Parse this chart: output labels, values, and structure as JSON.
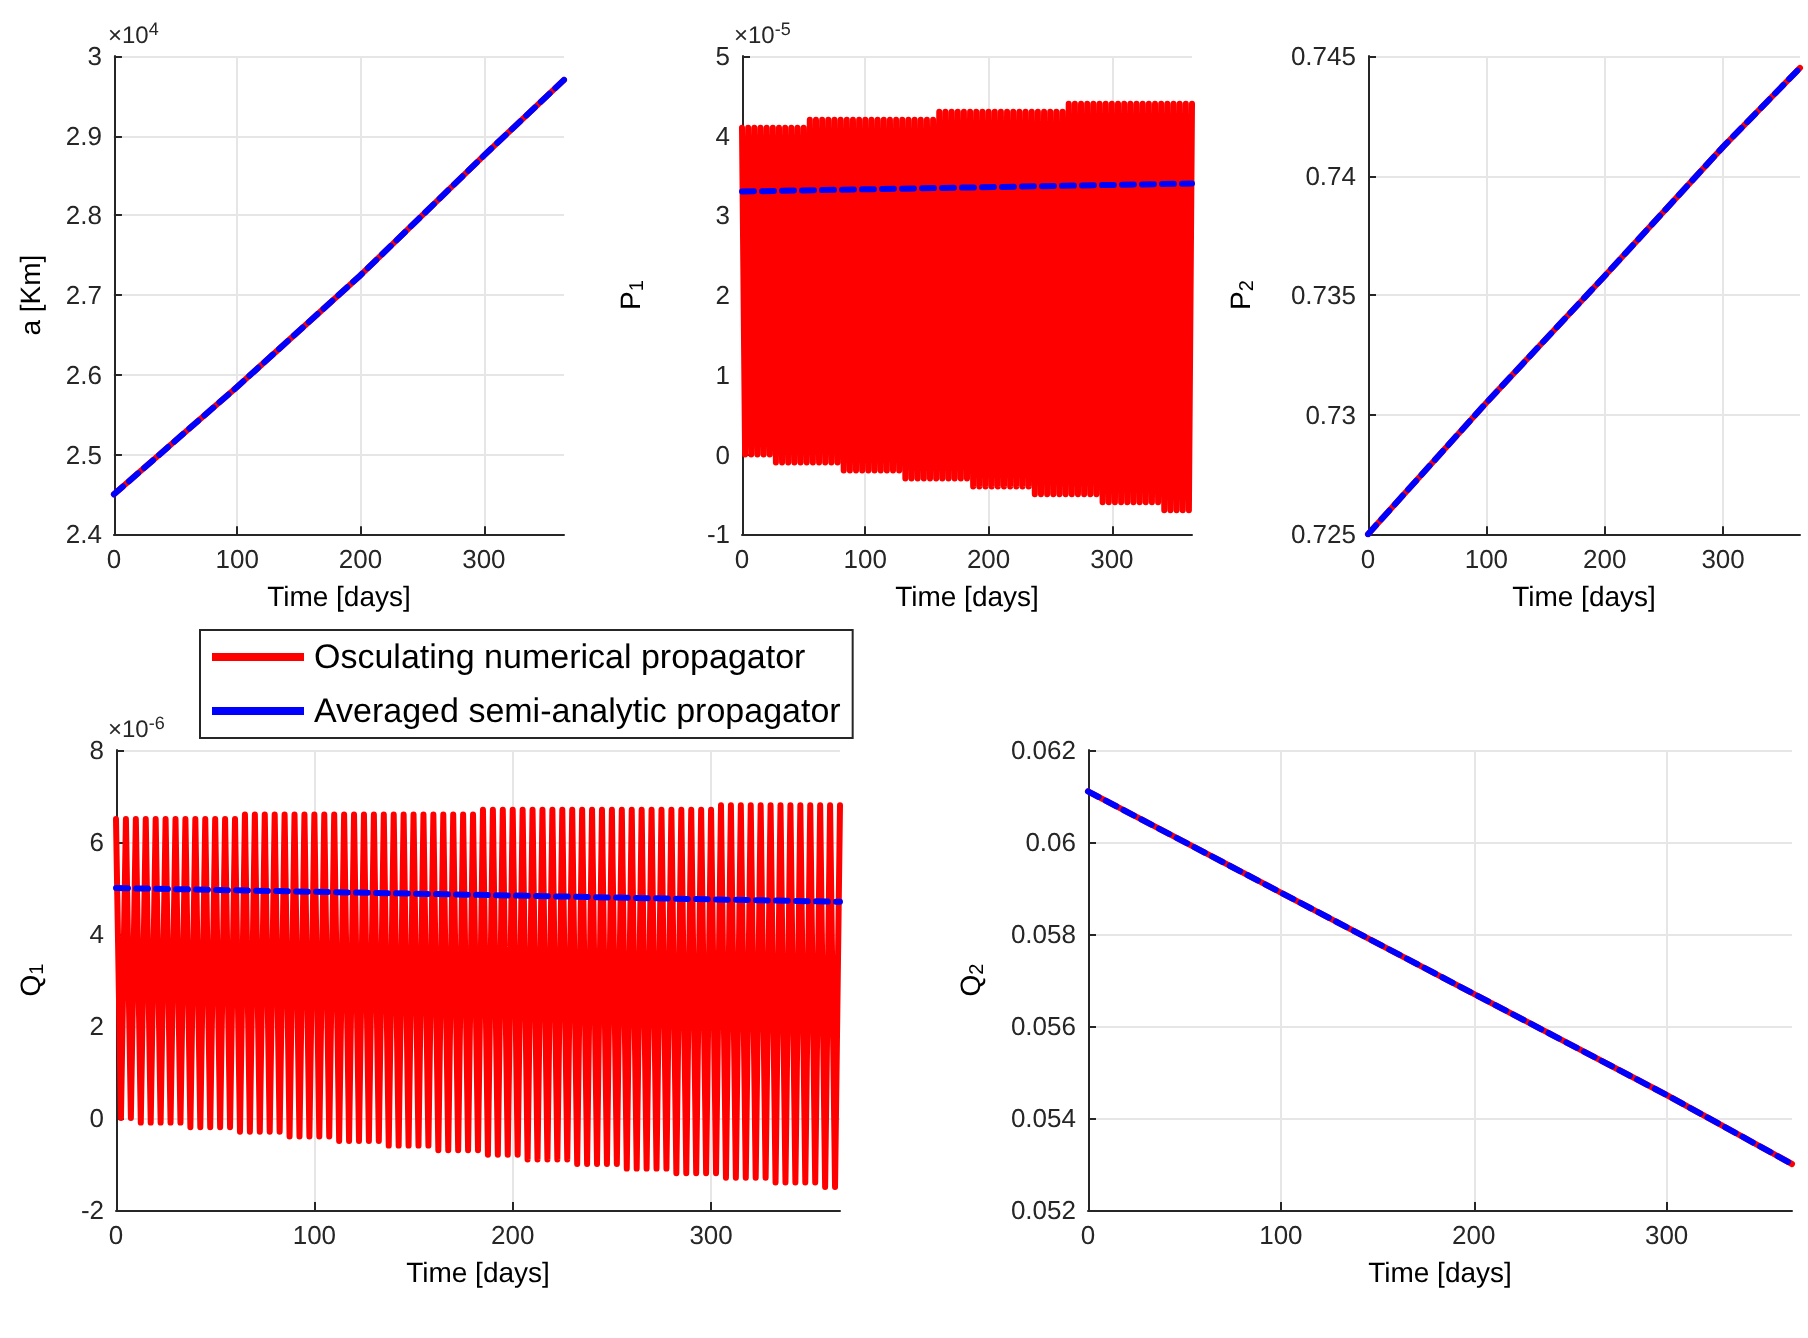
{
  "chart_data": [
    {
      "type": "line",
      "xlabel": "Time [days]",
      "ylabel": "a [Km]",
      "annotations": [
        "×10$^{4}$"
      ],
      "xlim": [
        0,
        365
      ],
      "xticks": [
        0,
        100,
        200,
        300
      ],
      "ylim": [
        2.4,
        3
      ],
      "yticks": [
        2.4,
        2.5,
        2.6,
        2.7,
        2.8,
        2.9,
        3
      ],
      "grid": true,
      "marker": "none",
      "series": [
        {
          "color": "#ff0000",
          "line_style": "solid",
          "x": [
            0,
            100,
            200,
            300,
            365
          ],
          "values": [
            2.45,
            2.585,
            2.725,
            2.875,
            2.97
          ]
        },
        {
          "color": "#0000ff",
          "line_style": "dashed",
          "x": [
            0,
            100,
            200,
            300,
            365
          ],
          "values": [
            2.45,
            2.585,
            2.725,
            2.875,
            2.97
          ]
        }
      ]
    },
    {
      "type": "line",
      "xlabel": "Time [days]",
      "ylabel": "P$_{1}$",
      "annotations": [
        "×10$^{-5}$"
      ],
      "xlim": [
        0,
        365
      ],
      "xticks": [
        0,
        100,
        200,
        300
      ],
      "ylim": [
        -1,
        5
      ],
      "yticks": [
        -1,
        0,
        1,
        2,
        3,
        4,
        5
      ],
      "grid": true,
      "marker": "none",
      "series": [
        {
          "color": "#ff0000",
          "line_style": "solid",
          "x": [
            0,
            2.5,
            5,
            7.5,
            10,
            12.5,
            15,
            17.5,
            20,
            22.5,
            25,
            27.5,
            30,
            32.5,
            35,
            37.5,
            40,
            42.5,
            45,
            47.5,
            50,
            52.5,
            55,
            57.5,
            60,
            62.5,
            65,
            67.5,
            70,
            72.5,
            75,
            77.5,
            80,
            82.5,
            85,
            87.5,
            90,
            92.5,
            95,
            97.5,
            100,
            102.5,
            105,
            107.5,
            110,
            112.5,
            115,
            117.5,
            120,
            122.5,
            125,
            127.5,
            130,
            132.5,
            135,
            137.5,
            140,
            142.5,
            145,
            147.5,
            150,
            152.5,
            155,
            157.5,
            160,
            162.5,
            165,
            167.5,
            170,
            172.5,
            175,
            177.5,
            180,
            182.5,
            185,
            187.5,
            190,
            192.5,
            195,
            197.5,
            200,
            202.5,
            205,
            207.5,
            210,
            212.5,
            215,
            217.5,
            220,
            222.5,
            225,
            227.5,
            230,
            232.5,
            235,
            237.5,
            240,
            242.5,
            245,
            247.5,
            250,
            252.5,
            255,
            257.5,
            260,
            262.5,
            265,
            267.5,
            270,
            272.5,
            275,
            277.5,
            280,
            282.5,
            285,
            287.5,
            290,
            292.5,
            295,
            297.5,
            300,
            302.5,
            305,
            307.5,
            310,
            312.5,
            315,
            317.5,
            320,
            322.5,
            325,
            327.5,
            330,
            332.5,
            335,
            337.5,
            340,
            342.5,
            345,
            347.5,
            350,
            352.5,
            355,
            357.5,
            360,
            362.5,
            365
          ],
          "values": [
            4.1,
            0,
            4.1,
            0,
            4.1,
            0,
            4.1,
            0,
            4.1,
            0,
            4.1,
            -0.1,
            4.1,
            -0.1,
            4.1,
            -0.1,
            4.1,
            -0.1,
            4.1,
            -0.1,
            4.1,
            -0.1,
            4.2,
            -0.1,
            4.2,
            -0.1,
            4.2,
            -0.1,
            4.2,
            -0.1,
            4.2,
            -0.1,
            4.2,
            -0.2,
            4.2,
            -0.2,
            4.2,
            -0.2,
            4.2,
            -0.2,
            4.2,
            -0.2,
            4.2,
            -0.2,
            4.2,
            -0.2,
            4.2,
            -0.2,
            4.2,
            -0.2,
            4.2,
            -0.2,
            4.2,
            -0.3,
            4.2,
            -0.3,
            4.2,
            -0.3,
            4.2,
            -0.3,
            4.2,
            -0.3,
            4.2,
            -0.3,
            4.3,
            -0.3,
            4.3,
            -0.3,
            4.3,
            -0.3,
            4.3,
            -0.3,
            4.3,
            -0.3,
            4.3,
            -0.4,
            4.3,
            -0.4,
            4.3,
            -0.4,
            4.3,
            -0.4,
            4.3,
            -0.4,
            4.3,
            -0.4,
            4.3,
            -0.4,
            4.3,
            -0.4,
            4.3,
            -0.4,
            4.3,
            -0.4,
            4.3,
            -0.5,
            4.3,
            -0.5,
            4.3,
            -0.5,
            4.3,
            -0.5,
            4.3,
            -0.5,
            4.3,
            -0.5,
            4.4,
            -0.5,
            4.4,
            -0.5,
            4.4,
            -0.5,
            4.4,
            -0.5,
            4.4,
            -0.5,
            4.4,
            -0.6,
            4.4,
            -0.6,
            4.4,
            -0.6,
            4.4,
            -0.6,
            4.4,
            -0.6,
            4.4,
            -0.6,
            4.4,
            -0.6,
            4.4,
            -0.6,
            4.4,
            -0.6,
            4.4,
            -0.6,
            4.4,
            -0.7,
            4.4,
            -0.7,
            4.4,
            -0.7,
            4.4,
            -0.7,
            4.4,
            -0.7,
            4.4
          ]
        },
        {
          "color": "#0000ff",
          "line_style": "dashed",
          "x": [
            0,
            365
          ],
          "values": [
            3.3,
            3.4
          ]
        }
      ]
    },
    {
      "type": "line",
      "xlabel": "Time [days]",
      "ylabel": "P$_{2}$",
      "xlim": [
        0,
        365
      ],
      "xticks": [
        0,
        100,
        200,
        300
      ],
      "ylim": [
        0.725,
        0.745
      ],
      "yticks": [
        0.725,
        0.73,
        0.735,
        0.74,
        0.745
      ],
      "grid": true,
      "marker": "none",
      "series": [
        {
          "color": "#ff0000",
          "line_style": "solid",
          "x": [
            0,
            100,
            200,
            300,
            365
          ],
          "values": [
            0.725,
            0.7305,
            0.7358,
            0.7412,
            0.7445
          ]
        },
        {
          "color": "#0000ff",
          "line_style": "dashed",
          "x": [
            0,
            100,
            200,
            300,
            365
          ],
          "values": [
            0.725,
            0.7305,
            0.7358,
            0.7412,
            0.7445
          ]
        }
      ]
    },
    {
      "type": "line",
      "xlabel": "Time [days]",
      "ylabel": "Q$_{1}$",
      "annotations": [
        "×10$^{-6}$"
      ],
      "xlim": [
        0,
        365
      ],
      "xticks": [
        0,
        100,
        200,
        300
      ],
      "ylim": [
        -2,
        8
      ],
      "yticks": [
        -2,
        0,
        2,
        4,
        6,
        8
      ],
      "grid": true,
      "marker": "none",
      "legend": "top",
      "series": [
        {
          "name": "Osculating numerical propagator",
          "color": "#ff0000",
          "line_style": "solid",
          "x": [
            0,
            2.5,
            5,
            7.5,
            10,
            12.5,
            15,
            17.5,
            20,
            22.5,
            25,
            27.5,
            30,
            32.5,
            35,
            37.5,
            40,
            42.5,
            45,
            47.5,
            50,
            52.5,
            55,
            57.5,
            60,
            62.5,
            65,
            67.5,
            70,
            72.5,
            75,
            77.5,
            80,
            82.5,
            85,
            87.5,
            90,
            92.5,
            95,
            97.5,
            100,
            102.5,
            105,
            107.5,
            110,
            112.5,
            115,
            117.5,
            120,
            122.5,
            125,
            127.5,
            130,
            132.5,
            135,
            137.5,
            140,
            142.5,
            145,
            147.5,
            150,
            152.5,
            155,
            157.5,
            160,
            162.5,
            165,
            167.5,
            170,
            172.5,
            175,
            177.5,
            180,
            182.5,
            185,
            187.5,
            190,
            192.5,
            195,
            197.5,
            200,
            202.5,
            205,
            207.5,
            210,
            212.5,
            215,
            217.5,
            220,
            222.5,
            225,
            227.5,
            230,
            232.5,
            235,
            237.5,
            240,
            242.5,
            245,
            247.5,
            250,
            252.5,
            255,
            257.5,
            260,
            262.5,
            265,
            267.5,
            270,
            272.5,
            275,
            277.5,
            280,
            282.5,
            285,
            287.5,
            290,
            292.5,
            295,
            297.5,
            300,
            302.5,
            305,
            307.5,
            310,
            312.5,
            315,
            317.5,
            320,
            322.5,
            325,
            327.5,
            330,
            332.5,
            335,
            337.5,
            340,
            342.5,
            345,
            347.5,
            350,
            352.5,
            355,
            357.5,
            360,
            362.5,
            365
          ],
          "values": [
            6.5,
            0,
            6.5,
            0,
            6.5,
            -0.1,
            6.5,
            -0.1,
            6.5,
            -0.1,
            6.5,
            -0.1,
            6.5,
            -0.1,
            6.5,
            -0.2,
            6.5,
            -0.2,
            6.5,
            -0.2,
            6.5,
            -0.2,
            6.5,
            -0.2,
            6.5,
            -0.3,
            6.6,
            -0.3,
            6.6,
            -0.3,
            6.6,
            -0.3,
            6.6,
            -0.3,
            6.6,
            -0.4,
            6.6,
            -0.4,
            6.6,
            -0.4,
            6.6,
            -0.4,
            6.6,
            -0.4,
            6.6,
            -0.5,
            6.6,
            -0.5,
            6.6,
            -0.5,
            6.6,
            -0.5,
            6.6,
            -0.5,
            6.6,
            -0.6,
            6.6,
            -0.6,
            6.6,
            -0.6,
            6.6,
            -0.6,
            6.6,
            -0.6,
            6.6,
            -0.7,
            6.6,
            -0.7,
            6.6,
            -0.7,
            6.6,
            -0.7,
            6.6,
            -0.7,
            6.7,
            -0.8,
            6.7,
            -0.8,
            6.7,
            -0.8,
            6.7,
            -0.8,
            6.7,
            -0.9,
            6.7,
            -0.9,
            6.7,
            -0.9,
            6.7,
            -0.9,
            6.7,
            -0.9,
            6.7,
            -1.0,
            6.7,
            -1.0,
            6.7,
            -1.0,
            6.7,
            -1.0,
            6.7,
            -1.0,
            6.7,
            -1.1,
            6.7,
            -1.1,
            6.7,
            -1.1,
            6.7,
            -1.1,
            6.7,
            -1.1,
            6.7,
            -1.2,
            6.7,
            -1.2,
            6.7,
            -1.2,
            6.7,
            -1.2,
            6.7,
            -1.2,
            6.8,
            -1.3,
            6.8,
            -1.3,
            6.8,
            -1.3,
            6.8,
            -1.3,
            6.8,
            -1.3,
            6.8,
            -1.4,
            6.8,
            -1.4,
            6.8,
            -1.4,
            6.8,
            -1.4,
            6.8,
            -1.4,
            6.8,
            -1.5,
            6.8,
            -1.5,
            6.8
          ]
        },
        {
          "name": "Averaged semi-analytic propagator",
          "color": "#0000ff",
          "line_style": "dashed",
          "x": [
            0,
            365
          ],
          "values": [
            5.0,
            4.7
          ]
        }
      ]
    },
    {
      "type": "line",
      "xlabel": "Time [days]",
      "ylabel": "Q$_{2}$",
      "xlim": [
        0,
        365
      ],
      "xticks": [
        0,
        100,
        200,
        300
      ],
      "ylim": [
        0.052,
        0.062
      ],
      "yticks": [
        0.052,
        0.054,
        0.056,
        0.058,
        0.06,
        0.062
      ],
      "grid": true,
      "marker": "none",
      "series": [
        {
          "color": "#ff0000",
          "line_style": "solid",
          "x": [
            0,
            100,
            200,
            300,
            365
          ],
          "values": [
            0.0611,
            0.0589,
            0.0567,
            0.0545,
            0.053
          ]
        },
        {
          "color": "#0000ff",
          "line_style": "dashed",
          "x": [
            0,
            100,
            200,
            300,
            365
          ],
          "values": [
            0.0611,
            0.0589,
            0.0567,
            0.0545,
            0.053
          ]
        }
      ]
    }
  ]
}
